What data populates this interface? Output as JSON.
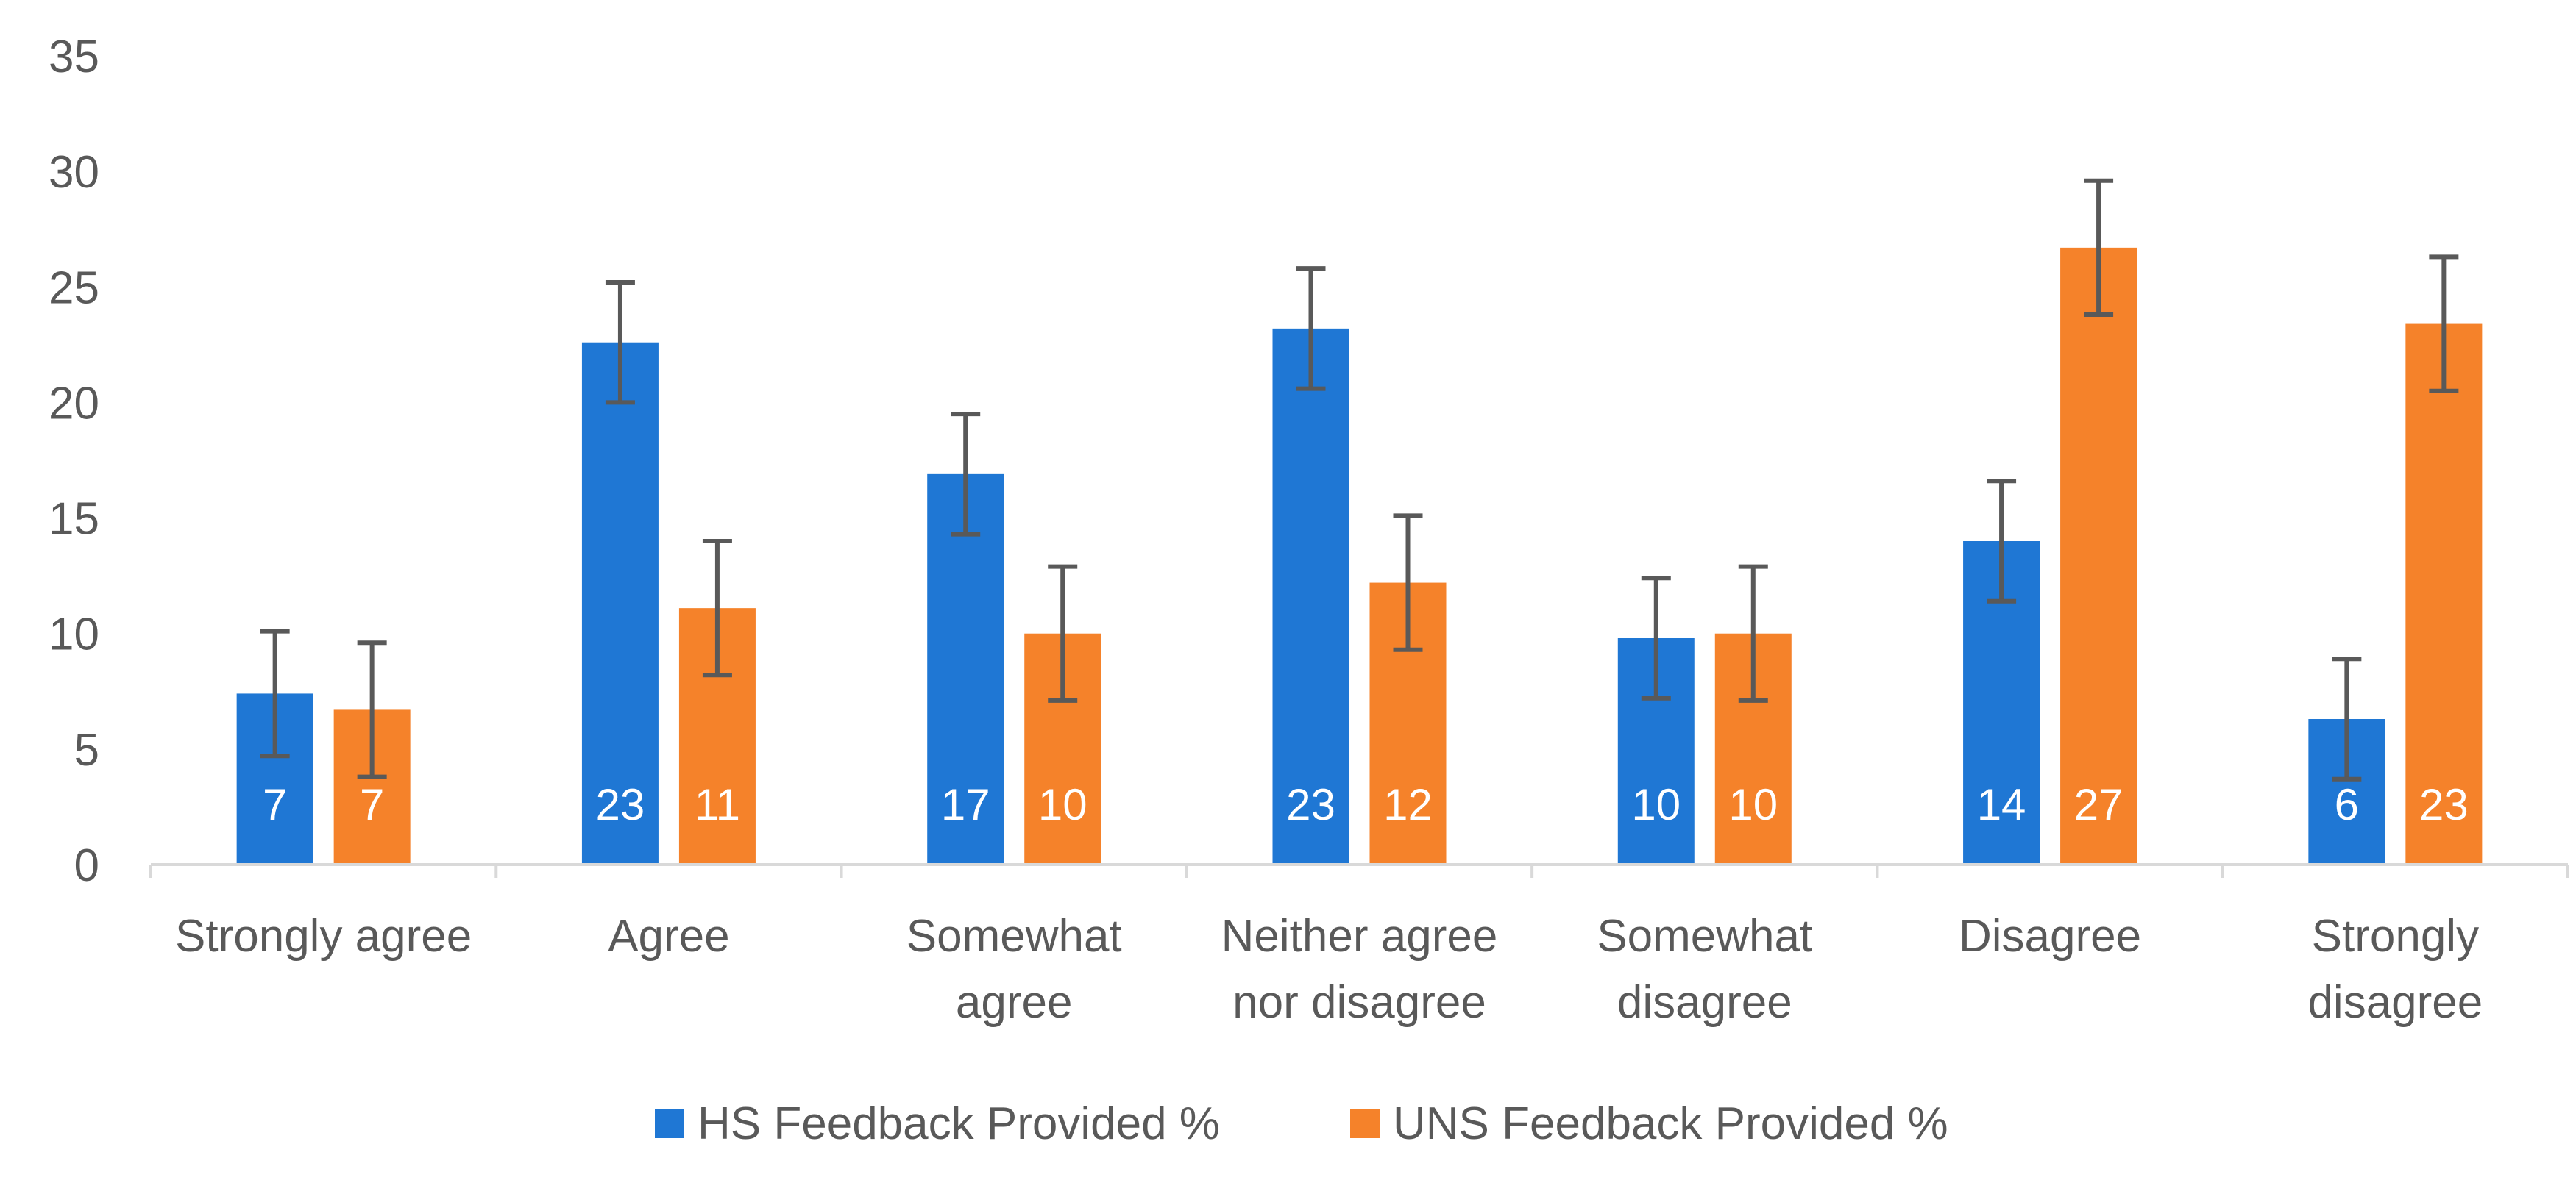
{
  "chart_data": {
    "type": "bar",
    "title": "",
    "xlabel": "",
    "ylabel": "",
    "ylim": [
      0,
      35
    ],
    "yticks": [
      0,
      5,
      10,
      15,
      20,
      25,
      30,
      35
    ],
    "grid": false,
    "legend_position": "bottom",
    "categories": [
      [
        "Strongly agree"
      ],
      [
        "Agree"
      ],
      [
        "Somewhat",
        "agree"
      ],
      [
        "Neither agree",
        "nor disagree"
      ],
      [
        "Somewhat",
        "disagree"
      ],
      [
        "Disagree"
      ],
      [
        "Strongly",
        "disagree"
      ]
    ],
    "series": [
      {
        "name": "HS Feedback Provided %",
        "color": "#1f77d4",
        "values": [
          7.4,
          22.6,
          16.9,
          23.2,
          9.8,
          14.0,
          6.3
        ],
        "labels": [
          "7",
          "23",
          "17",
          "23",
          "10",
          "14",
          "6"
        ],
        "error": [
          2.7,
          2.6,
          2.6,
          2.6,
          2.6,
          2.6,
          2.6
        ]
      },
      {
        "name": "UNS Feedback Provided %",
        "color": "#f5822a",
        "values": [
          6.7,
          11.1,
          10.0,
          12.2,
          10.0,
          26.7,
          23.4
        ],
        "labels": [
          "7",
          "11",
          "10",
          "12",
          "10",
          "27",
          "23"
        ],
        "error": [
          2.9,
          2.9,
          2.9,
          2.9,
          2.9,
          2.9,
          2.9
        ]
      }
    ]
  }
}
